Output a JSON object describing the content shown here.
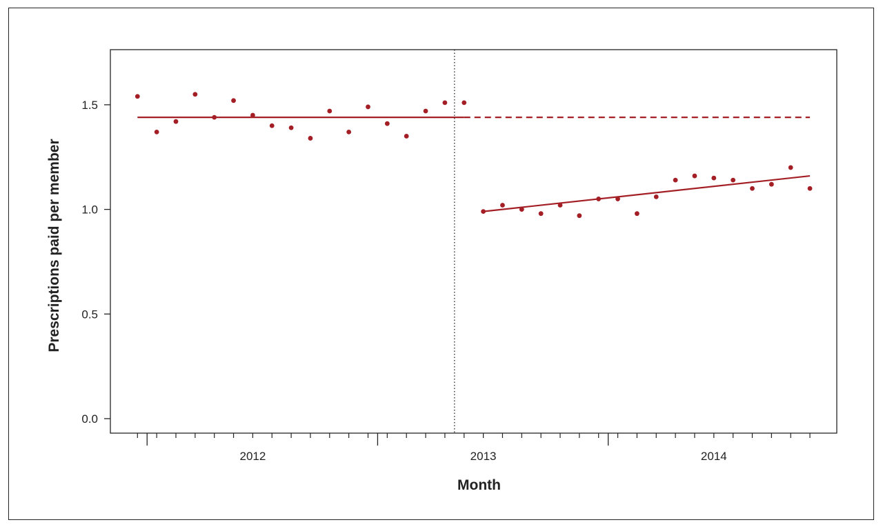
{
  "chart_data": {
    "type": "scatter",
    "title": "",
    "xlabel": "Month",
    "ylabel": "Prescriptions paid per member",
    "ylim": [
      -0.07,
      1.77
    ],
    "yticks": [
      {
        "value": 0.0,
        "label": "0.0"
      },
      {
        "value": 0.5,
        "label": "0.5"
      },
      {
        "value": 1.0,
        "label": "1.0"
      },
      {
        "value": 1.5,
        "label": "1.5"
      }
    ],
    "x_categories": [
      "2012",
      "2013",
      "2014"
    ],
    "intervention_month_index": 17.5,
    "grid": false,
    "legend": "none",
    "colors": {
      "series": "#a31f25",
      "axis": "#222222"
    },
    "series": [
      {
        "x": [
          1,
          2,
          3,
          4,
          5,
          6,
          7,
          8,
          9,
          10,
          11,
          12,
          13,
          14,
          15,
          16,
          17,
          18,
          19,
          20,
          21,
          22,
          23,
          24,
          25,
          26,
          27,
          28,
          29,
          30,
          31,
          32,
          33,
          34,
          35,
          36
        ],
        "values": [
          1.54,
          1.37,
          1.42,
          1.55,
          1.44,
          1.52,
          1.45,
          1.4,
          1.39,
          1.34,
          1.47,
          1.37,
          1.49,
          1.41,
          1.35,
          1.47,
          1.51,
          1.51,
          0.99,
          1.02,
          1.0,
          0.98,
          1.02,
          0.97,
          1.05,
          1.05,
          0.98,
          1.06,
          1.14,
          1.16,
          1.15,
          1.14,
          1.1,
          1.12,
          1.2,
          1.1
        ]
      }
    ],
    "trend_lines": [
      {
        "style": "solid",
        "x": [
          1,
          18
        ],
        "y": [
          1.44,
          1.44
        ]
      },
      {
        "style": "dashed",
        "x": [
          18,
          36
        ],
        "y": [
          1.44,
          1.44
        ]
      },
      {
        "style": "solid",
        "x": [
          19,
          36
        ],
        "y": [
          0.99,
          1.16
        ]
      }
    ]
  }
}
